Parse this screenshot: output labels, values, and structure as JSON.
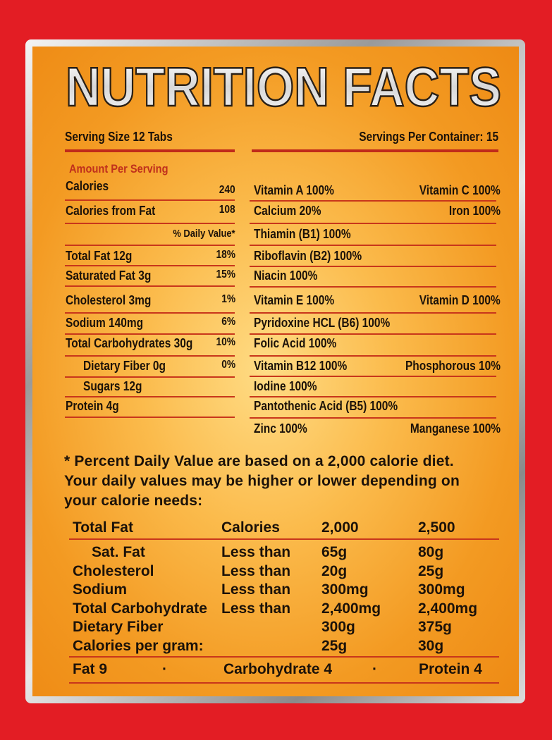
{
  "title": "NUTRITION FACTS",
  "serving_size": "Serving Size 12 Tabs",
  "servings_per_container": "Servings Per Container: 15",
  "amount_per_serving": "Amount Per Serving",
  "daily_value_header": "% Daily Value*",
  "left_rows": [
    {
      "label": "Calories",
      "value": "240"
    },
    {
      "label": "Calories from Fat",
      "value": "108"
    },
    {
      "label": "Total Fat 12g",
      "value": "18%"
    },
    {
      "label": "Saturated Fat 3g",
      "value": "15%"
    },
    {
      "label": "Cholesterol 3mg",
      "value": "1%"
    },
    {
      "label": "Sodium 140mg",
      "value": "6%"
    },
    {
      "label": "Total Carbohydrates 30g",
      "value": "10%"
    },
    {
      "label": "Dietary Fiber 0g",
      "value": "0%",
      "indent": true
    },
    {
      "label": "Sugars 12g",
      "value": "",
      "indent": true
    },
    {
      "label": "Protein 4g",
      "value": ""
    }
  ],
  "right_rows": [
    {
      "left": "Vitamin A 100%",
      "right": "Vitamin C 100%"
    },
    {
      "left": "Calcium 20%",
      "right": "Iron 100%"
    },
    {
      "left": "Thiamin (B1) 100%",
      "right": ""
    },
    {
      "left": "Riboflavin (B2) 100%",
      "right": ""
    },
    {
      "left": "Niacin 100%",
      "right": ""
    },
    {
      "left": "Vitamin E 100%",
      "right": "Vitamin D 100%"
    },
    {
      "left": "Pyridoxine HCL (B6) 100%",
      "right": ""
    },
    {
      "left": "Folic Acid 100%",
      "right": ""
    },
    {
      "left": "Vitamin B12 100%",
      "right": "Phosphorous 10%"
    },
    {
      "left": "Iodine 100%",
      "right": ""
    },
    {
      "left": "Pantothenic Acid (B5) 100%",
      "right": ""
    },
    {
      "left": "Zinc 100%",
      "right": "Manganese 100%"
    }
  ],
  "footnote": [
    "* Percent Daily Value are based on a 2,000 calorie diet.",
    "Your daily values may be higher or lower depending on",
    "your calorie needs:"
  ],
  "dv_table": {
    "header": [
      "Total Fat",
      "Calories",
      "2,000",
      "2,500"
    ],
    "rows": [
      [
        "Sat. Fat",
        "Less than",
        "65g",
        "80g"
      ],
      [
        "Cholesterol",
        "Less than",
        "20g",
        "25g"
      ],
      [
        "Sodium",
        "Less than",
        "300mg",
        "300mg"
      ],
      [
        "Total Carbohydrate",
        "Less than",
        "2,400mg",
        "2,400mg"
      ],
      [
        "Dietary Fiber",
        "",
        "300g",
        "375g"
      ],
      [
        "Calories per gram:",
        "",
        "25g",
        "30g"
      ]
    ],
    "calories_per_gram": [
      "Fat 9",
      "·",
      "Carbohydrate 4",
      "·",
      "Protein 4"
    ]
  },
  "colors": {
    "background": "#e31d24",
    "accent": "#c8361b",
    "amount_label": "#c0301c"
  }
}
